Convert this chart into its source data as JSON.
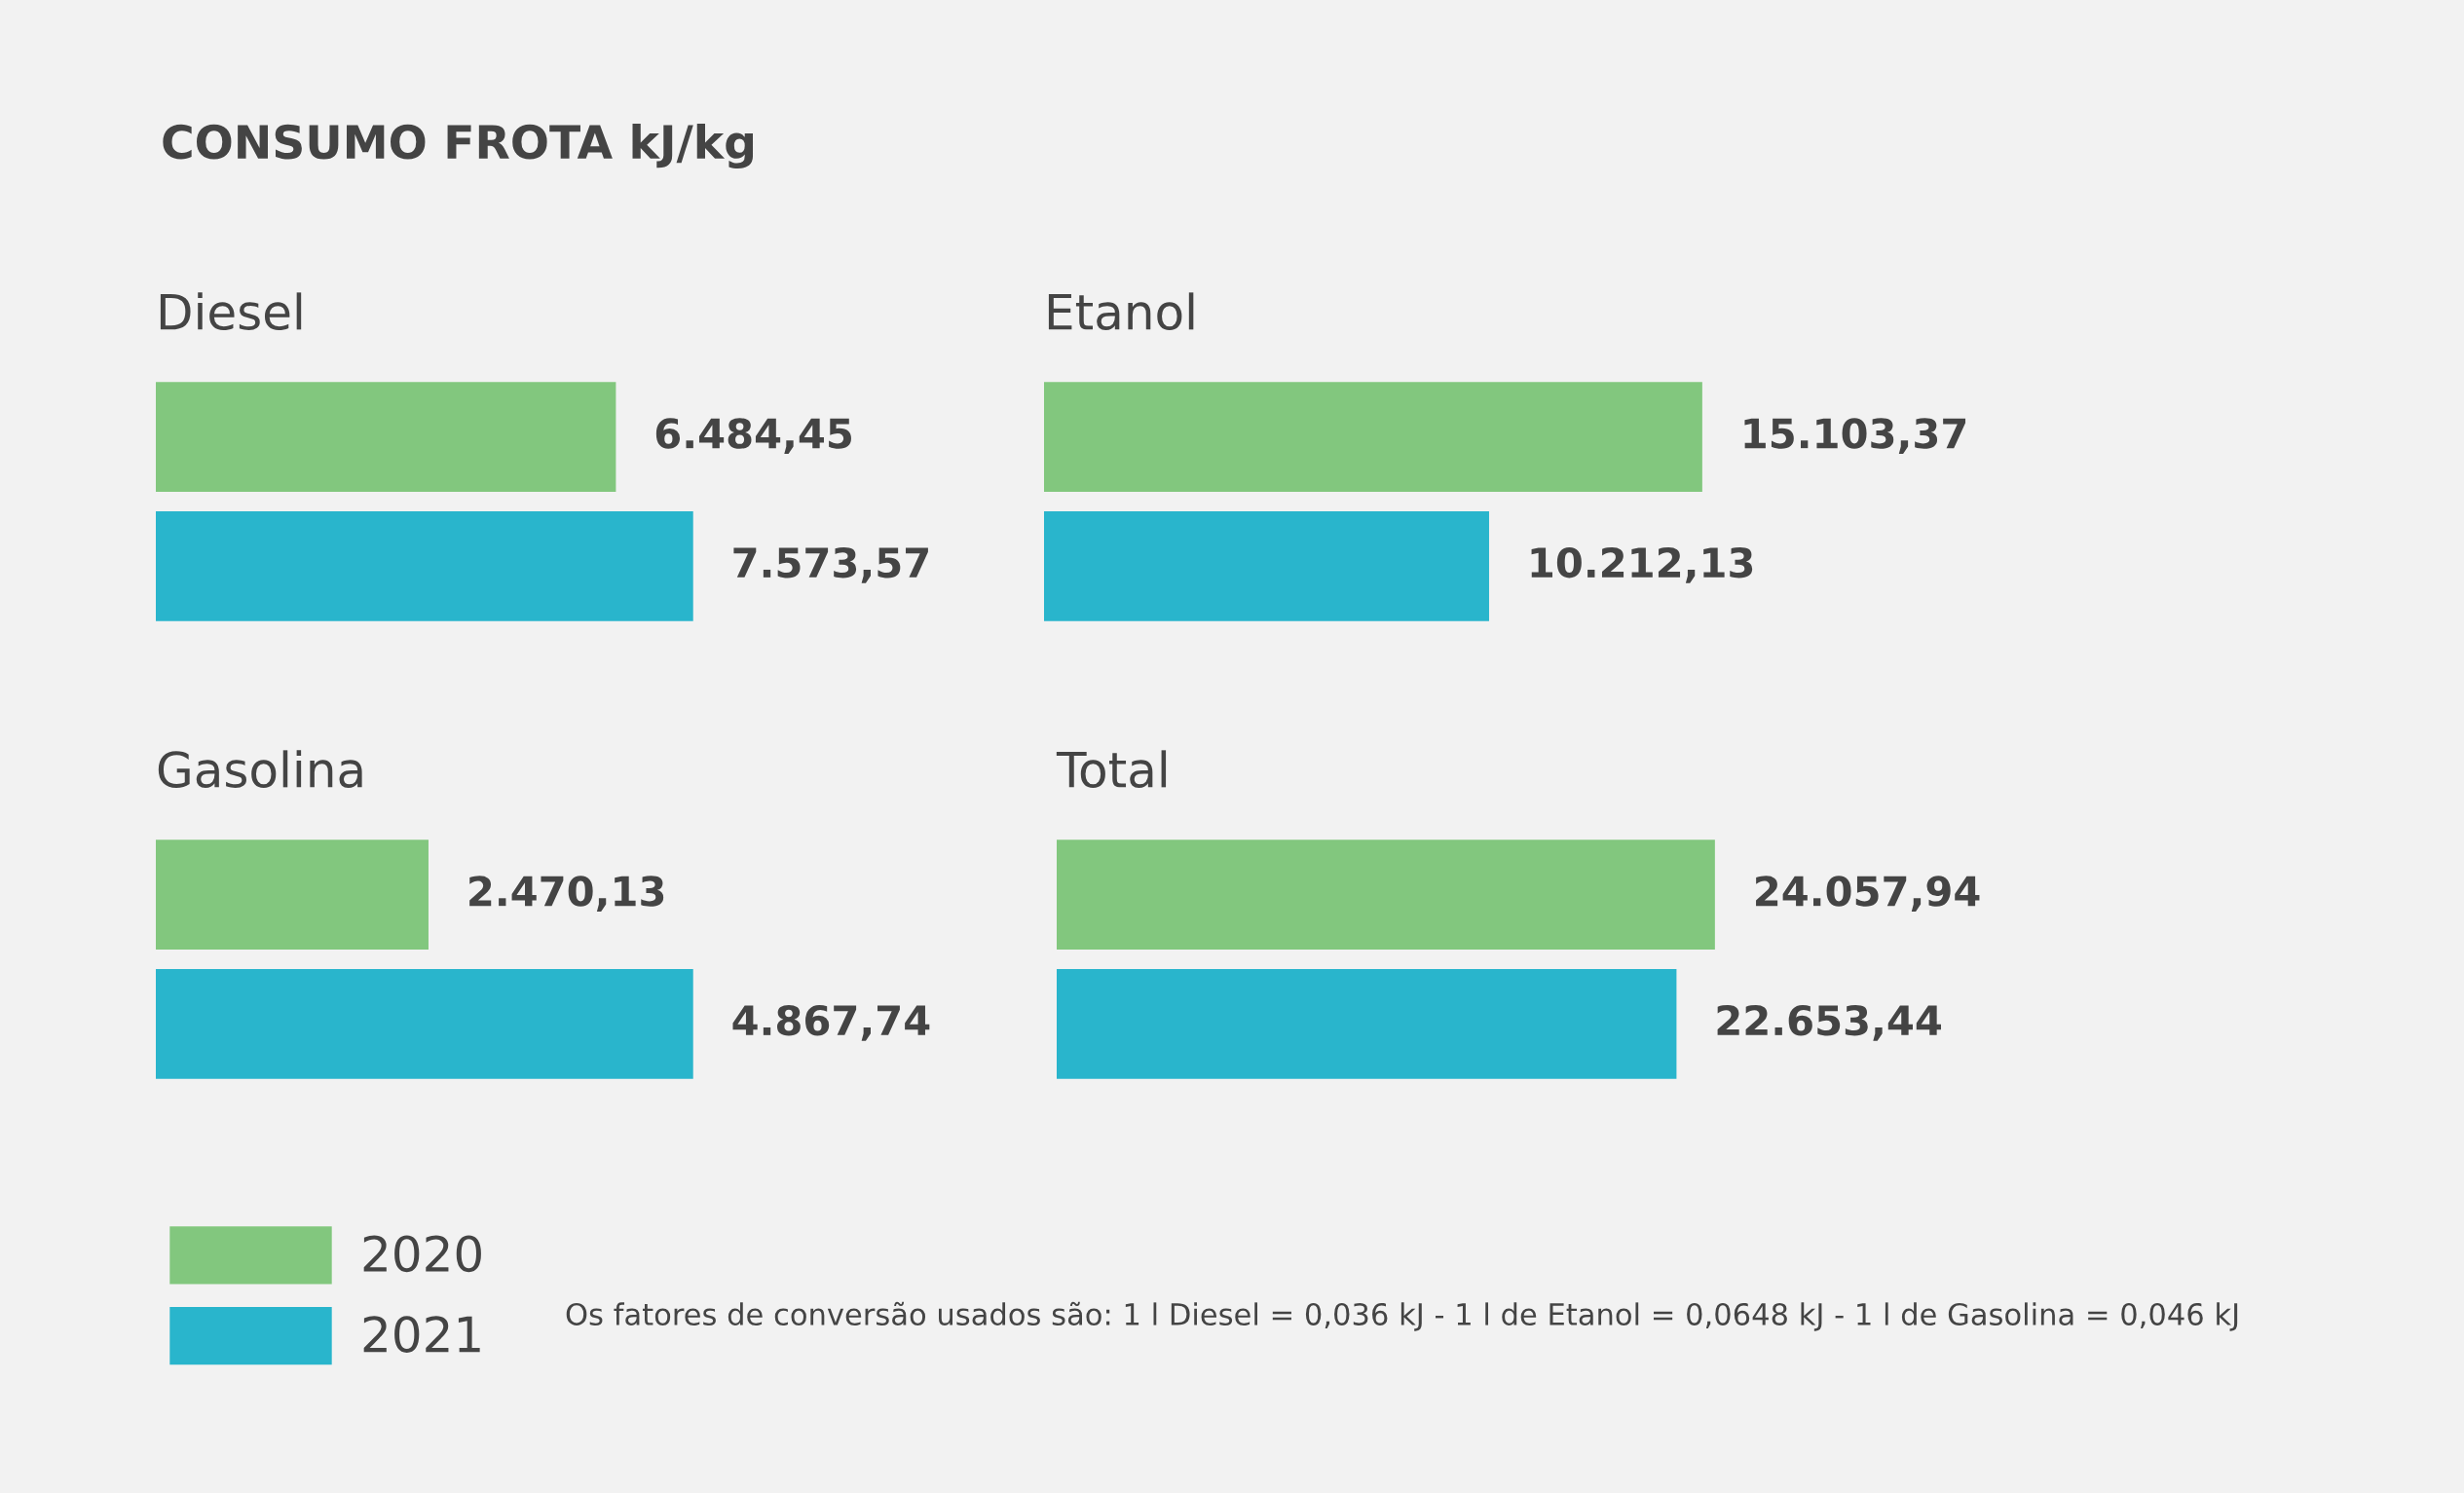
{
  "chart_data": [
    {
      "type": "other",
      "title": "CONSUMO FROTA kJ/kg",
      "annotations": [
        "Os fatores de conversão usados são: 1 l Diesel = 0,036 kJ - 1 l de Etanol = 0,0648 kJ - 1 l de Gasolina = 0,046 kJ"
      ]
    },
    {
      "type": "bar",
      "orientation": "horizontal",
      "title": "Diesel",
      "categories": [
        null
      ],
      "legend": "bottom left",
      "series": [
        {
          "name": "2020",
          "color": "#82c77e",
          "values": [
            6484.45
          ],
          "value_labels": [
            "6.484,45"
          ]
        },
        {
          "name": "2021",
          "color": "#29b5cc",
          "values": [
            7573.57
          ],
          "value_labels": [
            "7.573,57"
          ]
        }
      ]
    },
    {
      "type": "bar",
      "orientation": "horizontal",
      "title": "Etanol",
      "categories": [
        null
      ],
      "series": [
        {
          "color": "#82c77e",
          "values": [
            15103.37
          ],
          "value_labels": [
            "15.103,37"
          ]
        },
        {
          "color": "#29b5cc",
          "values": [
            10212.13
          ],
          "value_labels": [
            "10.212,13"
          ]
        }
      ]
    },
    {
      "type": "bar",
      "orientation": "horizontal",
      "title": "Gasolina",
      "categories": [
        null
      ],
      "series": [
        {
          "color": "#82c77e",
          "values": [
            2470.13
          ],
          "value_labels": [
            "2.470,13"
          ]
        },
        {
          "color": "#29b5cc",
          "values": [
            4867.74
          ],
          "value_labels": [
            "4.867,74"
          ]
        }
      ]
    },
    {
      "type": "bar",
      "orientation": "horizontal",
      "title": "Total",
      "categories": [
        null
      ],
      "series": [
        {
          "color": "#82c77e",
          "values": [
            24057.94
          ],
          "value_labels": [
            "24.057,94"
          ]
        },
        {
          "color": "#29b5cc",
          "values": [
            22653.44
          ],
          "value_labels": [
            "22.653,44"
          ]
        }
      ]
    }
  ]
}
